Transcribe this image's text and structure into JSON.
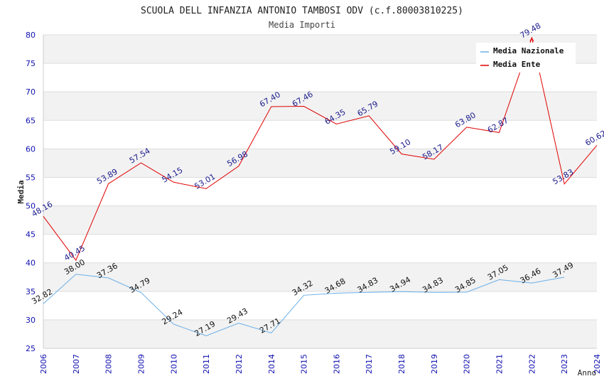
{
  "chart_data": {
    "type": "line",
    "title": "SCUOLA DELL INFANZIA ANTONIO TAMBOSI ODV (c.f.80003810225)",
    "subtitle": "Media Importi",
    "xlabel": "Anno",
    "ylabel": "Media",
    "ylim": [
      25,
      80
    ],
    "yticks": [
      "25",
      "30",
      "35",
      "40",
      "45",
      "50",
      "55",
      "60",
      "65",
      "70",
      "75",
      "80"
    ],
    "categories": [
      "2006",
      "2007",
      "2008",
      "2009",
      "2010",
      "2011",
      "2012",
      "2014",
      "2015",
      "2016",
      "2017",
      "2018",
      "2019",
      "2020",
      "2021",
      "2022",
      "2023",
      "2024"
    ],
    "legend_position": "top-right",
    "grid": true,
    "series": [
      {
        "name": "Media Nazionale",
        "color": "#6aaee8",
        "values": [
          32.82,
          38.0,
          37.36,
          34.79,
          29.24,
          27.19,
          29.43,
          27.71,
          34.32,
          34.68,
          34.83,
          34.94,
          34.83,
          34.85,
          37.05,
          36.46,
          37.49,
          null
        ],
        "labels": [
          "32.82",
          "38.00",
          "37.36",
          "34.79",
          "29.24",
          "27.19",
          "29.43",
          "27.71",
          "34.32",
          "34.68",
          "34.83",
          "34.94",
          "34.83",
          "34.85",
          "37.05",
          "36.46",
          "37.49",
          null
        ]
      },
      {
        "name": "Media Ente",
        "color": "#e00000",
        "values": [
          48.16,
          40.45,
          53.89,
          57.54,
          54.15,
          53.01,
          56.98,
          67.4,
          67.46,
          64.35,
          65.79,
          59.1,
          58.17,
          63.8,
          62.87,
          79.48,
          53.83,
          60.62
        ],
        "labels": [
          "48.16",
          "40.45",
          "53.89",
          "57.54",
          "54.15",
          "53.01",
          "56.98",
          "67.40",
          "67.46",
          "64.35",
          "65.79",
          "59.10",
          "58.17",
          "63.80",
          "62.87",
          "79.48",
          "53.83",
          "60.62"
        ]
      }
    ]
  }
}
